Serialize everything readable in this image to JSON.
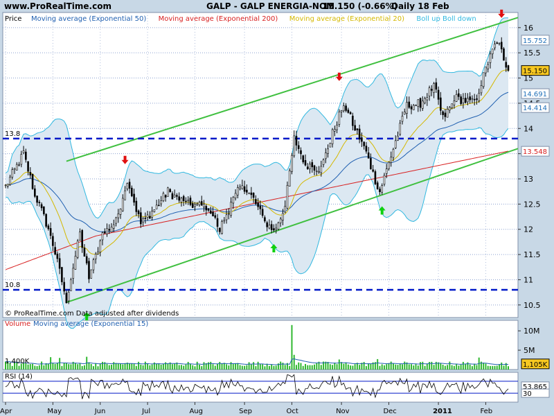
{
  "header": {
    "site": "www.ProRealTime.com",
    "title": "GALP - GALP ENERGIA-NOM",
    "price_change": "15.150 (-0.66%)",
    "period": "Daily 18 Feb"
  },
  "colors": {
    "background": "#c8d8e6",
    "panel": "#ffffff",
    "grid": "#8aa0d0",
    "up_candle": "#ffffff",
    "down_candle": "#000000",
    "ema50": "#1f5fb0",
    "ema200": "#d82020",
    "ma20": "#d4b800",
    "boll": "#30b8e0",
    "boll_fill": "#dce8f2",
    "channel": "#40c040",
    "level_line": "#0018c8",
    "volume": "#30b830",
    "rsi": "#000000",
    "price_box": "#f8c820"
  },
  "chart_data": [
    {
      "type": "candlestick",
      "panel": "price",
      "legend": [
        "Price",
        "Moving average (Exponential 50)",
        "Moving average (Exponential 200)",
        "Moving average (Exponential 20)",
        "Boll up Boll down"
      ],
      "footer": "© ProRealTime.com Data adjusted after dividends",
      "x_labels": [
        "Apr",
        "May",
        "Jun",
        "Jul",
        "Aug",
        "Sep",
        "Oct",
        "Nov",
        "Dec",
        "2011",
        "Feb"
      ],
      "y_ticks": [
        10.5,
        11,
        11.5,
        12,
        12.5,
        13,
        13.5,
        14,
        14.5,
        15,
        15.5,
        16
      ],
      "ylim": [
        10.25,
        16.3
      ],
      "right_labels": [
        {
          "text": "15.752",
          "value": 15.752
        },
        {
          "text": "15.150",
          "value": 15.15,
          "highlight": true
        },
        {
          "text": "14.691",
          "value": 14.691
        },
        {
          "text": "14.414",
          "value": 14.414
        },
        {
          "text": "13.548",
          "value": 13.548
        }
      ],
      "levels": [
        {
          "text": "13.8",
          "value": 13.8
        },
        {
          "text": "10.8",
          "value": 10.8
        }
      ],
      "channel_upper": {
        "start": 13.35,
        "end": 16.2
      },
      "channel_lower": {
        "start": 10.55,
        "end": 13.6
      },
      "down_arrows": [
        {
          "x_index": 53,
          "value": 13.1
        },
        {
          "x_index": 148,
          "value": 14.75
        },
        {
          "x_index": 220,
          "value": 16.0
        }
      ],
      "up_arrows": [
        {
          "x_index": 36,
          "value": 10.55
        },
        {
          "x_index": 119,
          "value": 11.9
        },
        {
          "x_index": 167,
          "value": 12.65
        }
      ],
      "anchors": [
        [
          0,
          12.85
        ],
        [
          8,
          13.5
        ],
        [
          13,
          12.7
        ],
        [
          20,
          11.9
        ],
        [
          27,
          10.6
        ],
        [
          33,
          11.9
        ],
        [
          37,
          11.05
        ],
        [
          43,
          11.9
        ],
        [
          49,
          12.15
        ],
        [
          54,
          13.0
        ],
        [
          60,
          12.1
        ],
        [
          67,
          12.45
        ],
        [
          72,
          12.75
        ],
        [
          80,
          12.5
        ],
        [
          90,
          12.45
        ],
        [
          95,
          12.0
        ],
        [
          100,
          12.5
        ],
        [
          105,
          12.9
        ],
        [
          110,
          12.6
        ],
        [
          115,
          12.15
        ],
        [
          119,
          11.95
        ],
        [
          124,
          12.45
        ],
        [
          128,
          13.8
        ],
        [
          133,
          13.3
        ],
        [
          140,
          13.2
        ],
        [
          145,
          13.9
        ],
        [
          150,
          14.5
        ],
        [
          155,
          14.0
        ],
        [
          159,
          13.65
        ],
        [
          163,
          13.1
        ],
        [
          166,
          12.75
        ],
        [
          172,
          13.6
        ],
        [
          178,
          14.45
        ],
        [
          184,
          14.5
        ],
        [
          190,
          14.85
        ],
        [
          194,
          14.2
        ],
        [
          200,
          14.6
        ],
        [
          208,
          14.5
        ],
        [
          214,
          15.3
        ],
        [
          218,
          15.75
        ],
        [
          221,
          15.4
        ],
        [
          223,
          15.15
        ]
      ],
      "num_bars": 224
    },
    {
      "type": "bar",
      "panel": "volume",
      "legend": [
        "Volume",
        "Moving average (Exponential 15)"
      ],
      "y_ticks": [
        {
          "text": "10M",
          "value": 10000000
        },
        {
          "text": "5M",
          "value": 5000000
        }
      ],
      "left_label": {
        "text": "1,400K",
        "value": 1400000
      },
      "right_label": {
        "text": "1,105K",
        "value": 1105000
      },
      "ylim": [
        0,
        12000000
      ],
      "typical_volume": 1400000,
      "spikes": [
        {
          "x_index": 127,
          "value": 11500000
        },
        {
          "x_index": 20,
          "value": 3200000
        },
        {
          "x_index": 24,
          "value": 3000000
        },
        {
          "x_index": 36,
          "value": 3300000
        },
        {
          "x_index": 128,
          "value": 3800000
        },
        {
          "x_index": 148,
          "value": 2600000
        },
        {
          "x_index": 165,
          "value": 2700000
        },
        {
          "x_index": 210,
          "value": 3100000
        }
      ]
    },
    {
      "type": "line",
      "panel": "rsi",
      "legend": [
        "RSI (14)"
      ],
      "ylim": [
        0,
        100
      ],
      "levels": [
        30,
        70
      ],
      "right_labels": [
        {
          "text": "53.865",
          "value": 53.865
        },
        {
          "text": "30",
          "value": 30
        }
      ]
    }
  ]
}
